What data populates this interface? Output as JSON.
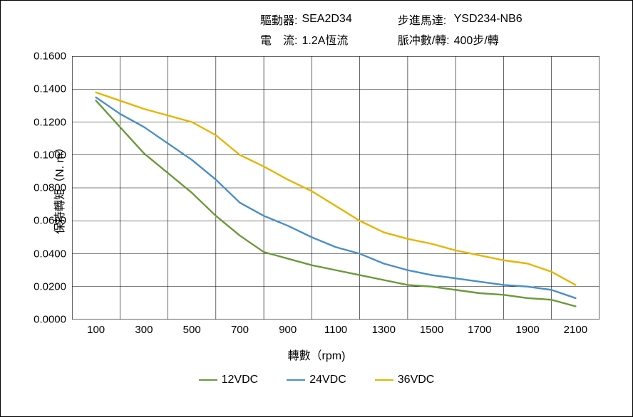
{
  "header": {
    "driver_label": "驅動器:",
    "driver_value": "SEA2D34",
    "motor_label": "步進馬達:",
    "motor_value": "YSD234-NB6",
    "current_label": "電　流:",
    "current_value": "1.2A恆流",
    "pulses_label": "脈冲數/轉:",
    "pulses_value": "400步/轉"
  },
  "chart": {
    "type": "line",
    "x_title": "轉數（rpm)",
    "y_title": "保持轉矩（N. m）",
    "xlim": [
      0,
      2200
    ],
    "ylim": [
      0.0,
      0.16
    ],
    "x_ticks": [
      100,
      300,
      500,
      700,
      900,
      1100,
      1300,
      1500,
      1700,
      1900,
      2100
    ],
    "y_ticks": [
      0.0,
      0.02,
      0.04,
      0.06,
      0.08,
      0.1,
      0.12,
      0.14,
      0.16
    ],
    "y_tick_decimals": 4,
    "x_grid": [
      0,
      200,
      400,
      600,
      800,
      1000,
      1200,
      1400,
      1600,
      1800,
      2000,
      2200
    ],
    "y_grid": [
      0.0,
      0.02,
      0.04,
      0.06,
      0.08,
      0.1,
      0.12,
      0.14,
      0.16
    ],
    "background_color": "#ffffff",
    "grid_color": "#000000",
    "grid_width": 0.6,
    "border_color": "#000000",
    "border_width": 1.2,
    "line_width": 2.4,
    "title_fontsize": 16,
    "tick_fontsize": 15,
    "series": [
      {
        "name": "12VDC",
        "color": "#6b9a3a",
        "x": [
          100,
          200,
          300,
          400,
          500,
          600,
          700,
          800,
          900,
          1000,
          1100,
          1200,
          1300,
          1400,
          1500,
          1600,
          1700,
          1800,
          1900,
          2000,
          2100
        ],
        "y": [
          0.133,
          0.117,
          0.101,
          0.089,
          0.077,
          0.063,
          0.051,
          0.041,
          0.037,
          0.033,
          0.03,
          0.027,
          0.024,
          0.021,
          0.02,
          0.018,
          0.016,
          0.015,
          0.013,
          0.012,
          0.008
        ]
      },
      {
        "name": "24VDC",
        "color": "#4a8fc7",
        "x": [
          100,
          200,
          300,
          400,
          500,
          600,
          700,
          800,
          900,
          1000,
          1100,
          1200,
          1300,
          1400,
          1500,
          1600,
          1700,
          1800,
          1900,
          2000,
          2100
        ],
        "y": [
          0.135,
          0.125,
          0.117,
          0.107,
          0.097,
          0.085,
          0.071,
          0.063,
          0.057,
          0.05,
          0.044,
          0.04,
          0.034,
          0.03,
          0.027,
          0.025,
          0.023,
          0.021,
          0.02,
          0.018,
          0.013
        ]
      },
      {
        "name": "36VDC",
        "color": "#e8b500",
        "x": [
          100,
          200,
          300,
          400,
          500,
          600,
          700,
          800,
          900,
          1000,
          1100,
          1200,
          1300,
          1400,
          1500,
          1600,
          1700,
          1800,
          1900,
          2000,
          2100
        ],
        "y": [
          0.138,
          0.133,
          0.128,
          0.124,
          0.12,
          0.112,
          0.1,
          0.093,
          0.085,
          0.078,
          0.069,
          0.06,
          0.053,
          0.049,
          0.046,
          0.042,
          0.039,
          0.036,
          0.034,
          0.029,
          0.021
        ]
      }
    ],
    "legend_items": [
      "12VDC",
      "24VDC",
      "36VDC"
    ]
  }
}
